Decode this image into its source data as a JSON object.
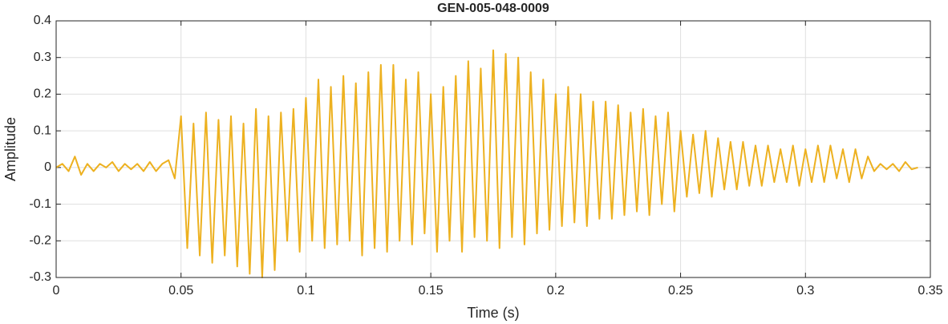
{
  "chart_data": {
    "type": "line",
    "title": "GEN-005-048-0009",
    "xlabel": "Time (s)",
    "ylabel": "Amplitude",
    "color": "#EDB120",
    "grid": true,
    "xlim": [
      0,
      0.35
    ],
    "ylim": [
      -0.3,
      0.4
    ],
    "xticks": [
      0,
      0.05,
      0.1,
      0.15,
      0.2,
      0.25,
      0.3,
      0.35
    ],
    "yticks": [
      -0.3,
      -0.2,
      -0.1,
      0,
      0.1,
      0.2,
      0.3,
      0.4
    ],
    "x": [
      0,
      0.0025,
      0.005,
      0.0075,
      0.01,
      0.0125,
      0.015,
      0.0175,
      0.02,
      0.0225,
      0.025,
      0.0275,
      0.03,
      0.0325,
      0.035,
      0.0375,
      0.04,
      0.0425,
      0.045,
      0.0475,
      0.05,
      0.0525,
      0.055,
      0.0575,
      0.06,
      0.0625,
      0.065,
      0.0675,
      0.07,
      0.0725,
      0.075,
      0.0775,
      0.08,
      0.0825,
      0.085,
      0.0875,
      0.09,
      0.0925,
      0.095,
      0.0975,
      0.1,
      0.1025,
      0.105,
      0.1075,
      0.11,
      0.1125,
      0.115,
      0.1175,
      0.12,
      0.1225,
      0.125,
      0.1275,
      0.13,
      0.1325,
      0.135,
      0.1375,
      0.14,
      0.1425,
      0.145,
      0.1475,
      0.15,
      0.1525,
      0.155,
      0.1575,
      0.16,
      0.1625,
      0.165,
      0.1675,
      0.17,
      0.1725,
      0.175,
      0.1775,
      0.18,
      0.1825,
      0.185,
      0.1875,
      0.19,
      0.1925,
      0.195,
      0.1975,
      0.2,
      0.2025,
      0.205,
      0.2075,
      0.21,
      0.2125,
      0.215,
      0.2175,
      0.22,
      0.2225,
      0.225,
      0.2275,
      0.23,
      0.2325,
      0.235,
      0.2375,
      0.24,
      0.2425,
      0.245,
      0.2475,
      0.25,
      0.2525,
      0.255,
      0.2575,
      0.26,
      0.2625,
      0.265,
      0.2675,
      0.27,
      0.2725,
      0.275,
      0.2775,
      0.28,
      0.2825,
      0.285,
      0.2875,
      0.29,
      0.2925,
      0.295,
      0.2975,
      0.3,
      0.3025,
      0.305,
      0.3075,
      0.31,
      0.3125,
      0.315,
      0.3175,
      0.32,
      0.3225,
      0.325,
      0.3275,
      0.33,
      0.3325,
      0.335,
      0.3375,
      0.34,
      0.3425,
      0.345
    ],
    "values": [
      0,
      0.01,
      -0.01,
      0.03,
      -0.02,
      0.01,
      -0.01,
      0.01,
      0,
      0.015,
      -0.01,
      0.01,
      -0.005,
      0.01,
      -0.01,
      0.015,
      -0.01,
      0.01,
      0.02,
      -0.03,
      0.14,
      -0.22,
      0.12,
      -0.24,
      0.15,
      -0.26,
      0.13,
      -0.24,
      0.14,
      -0.27,
      0.12,
      -0.29,
      0.16,
      -0.3,
      0.14,
      -0.28,
      0.15,
      -0.2,
      0.16,
      -0.23,
      0.19,
      -0.2,
      0.24,
      -0.22,
      0.22,
      -0.21,
      0.25,
      -0.2,
      0.23,
      -0.24,
      0.26,
      -0.22,
      0.28,
      -0.23,
      0.28,
      -0.2,
      0.24,
      -0.21,
      0.26,
      -0.18,
      0.2,
      -0.23,
      0.22,
      -0.2,
      0.25,
      -0.23,
      0.29,
      -0.19,
      0.27,
      -0.2,
      0.32,
      -0.22,
      0.31,
      -0.19,
      0.3,
      -0.21,
      0.26,
      -0.18,
      0.24,
      -0.17,
      0.2,
      -0.16,
      0.22,
      -0.15,
      0.2,
      -0.16,
      0.18,
      -0.14,
      0.18,
      -0.14,
      0.17,
      -0.13,
      0.15,
      -0.12,
      0.16,
      -0.13,
      0.14,
      -0.1,
      0.15,
      -0.12,
      0.1,
      -0.08,
      0.09,
      -0.07,
      0.1,
      -0.08,
      0.08,
      -0.06,
      0.07,
      -0.06,
      0.07,
      -0.05,
      0.06,
      -0.05,
      0.06,
      -0.04,
      0.05,
      -0.04,
      0.06,
      -0.05,
      0.05,
      -0.04,
      0.06,
      -0.04,
      0.06,
      -0.03,
      0.05,
      -0.04,
      0.05,
      -0.03,
      0.03,
      -0.01,
      0.01,
      -0.005,
      0.01,
      -0.01,
      0.015,
      -0.005,
      0
    ]
  }
}
